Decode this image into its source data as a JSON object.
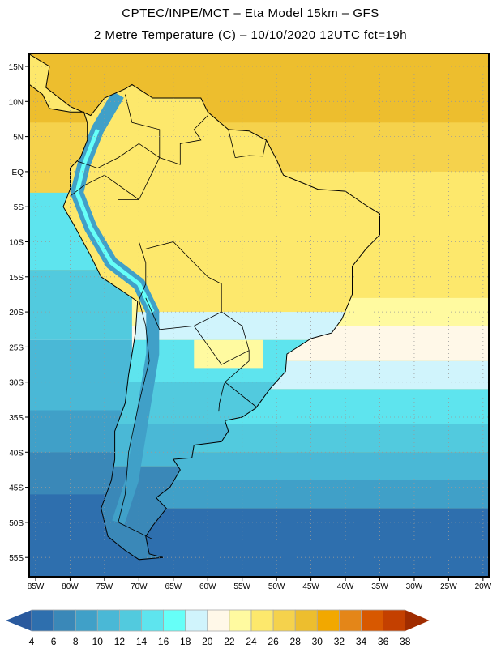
{
  "header": {
    "line1": "CPTEC/INPE/MCT –  Eta Model 15km – GFS",
    "line2": "2 Metre Temperature (C) – 10/10/2020 12UTC fct=19h"
  },
  "map": {
    "lat_labels": [
      "15N",
      "10N",
      "5N",
      "EQ",
      "5S",
      "10S",
      "15S",
      "20S",
      "25S",
      "30S",
      "35S",
      "40S",
      "45S",
      "50S",
      "55S"
    ],
    "lat_values": [
      15,
      10,
      5,
      0,
      -5,
      -10,
      -15,
      -20,
      -25,
      -30,
      -35,
      -40,
      -45,
      -50,
      -55
    ],
    "lon_labels": [
      "85W",
      "80W",
      "75W",
      "70W",
      "65W",
      "60W",
      "55W",
      "50W",
      "45W",
      "40W",
      "35W",
      "30W",
      "25W",
      "20W"
    ],
    "lon_values": [
      -85,
      -80,
      -75,
      -70,
      -65,
      -60,
      -55,
      -50,
      -45,
      -40,
      -35,
      -30,
      -25,
      -20
    ],
    "extent": {
      "lon": [
        -86,
        -19.2
      ],
      "lat": [
        16.8,
        -57.8
      ]
    }
  },
  "colorbar": {
    "labels": [
      "4",
      "6",
      "8",
      "10",
      "12",
      "14",
      "16",
      "18",
      "20",
      "22",
      "24",
      "26",
      "28",
      "30",
      "32",
      "34",
      "36",
      "38"
    ],
    "under_color": "#2a5a9e",
    "over_color": "#a02c00",
    "colors": [
      "#2e6fae",
      "#3a88b8",
      "#40a0c8",
      "#4ab8d6",
      "#52cade",
      "#5ee4ee",
      "#66fff8",
      "#d0f4fc",
      "#fff8e8",
      "#fffaa0",
      "#fde86c",
      "#f5d24c",
      "#edbe2e",
      "#f2a800",
      "#e48618",
      "#d85800",
      "#c44000"
    ]
  }
}
